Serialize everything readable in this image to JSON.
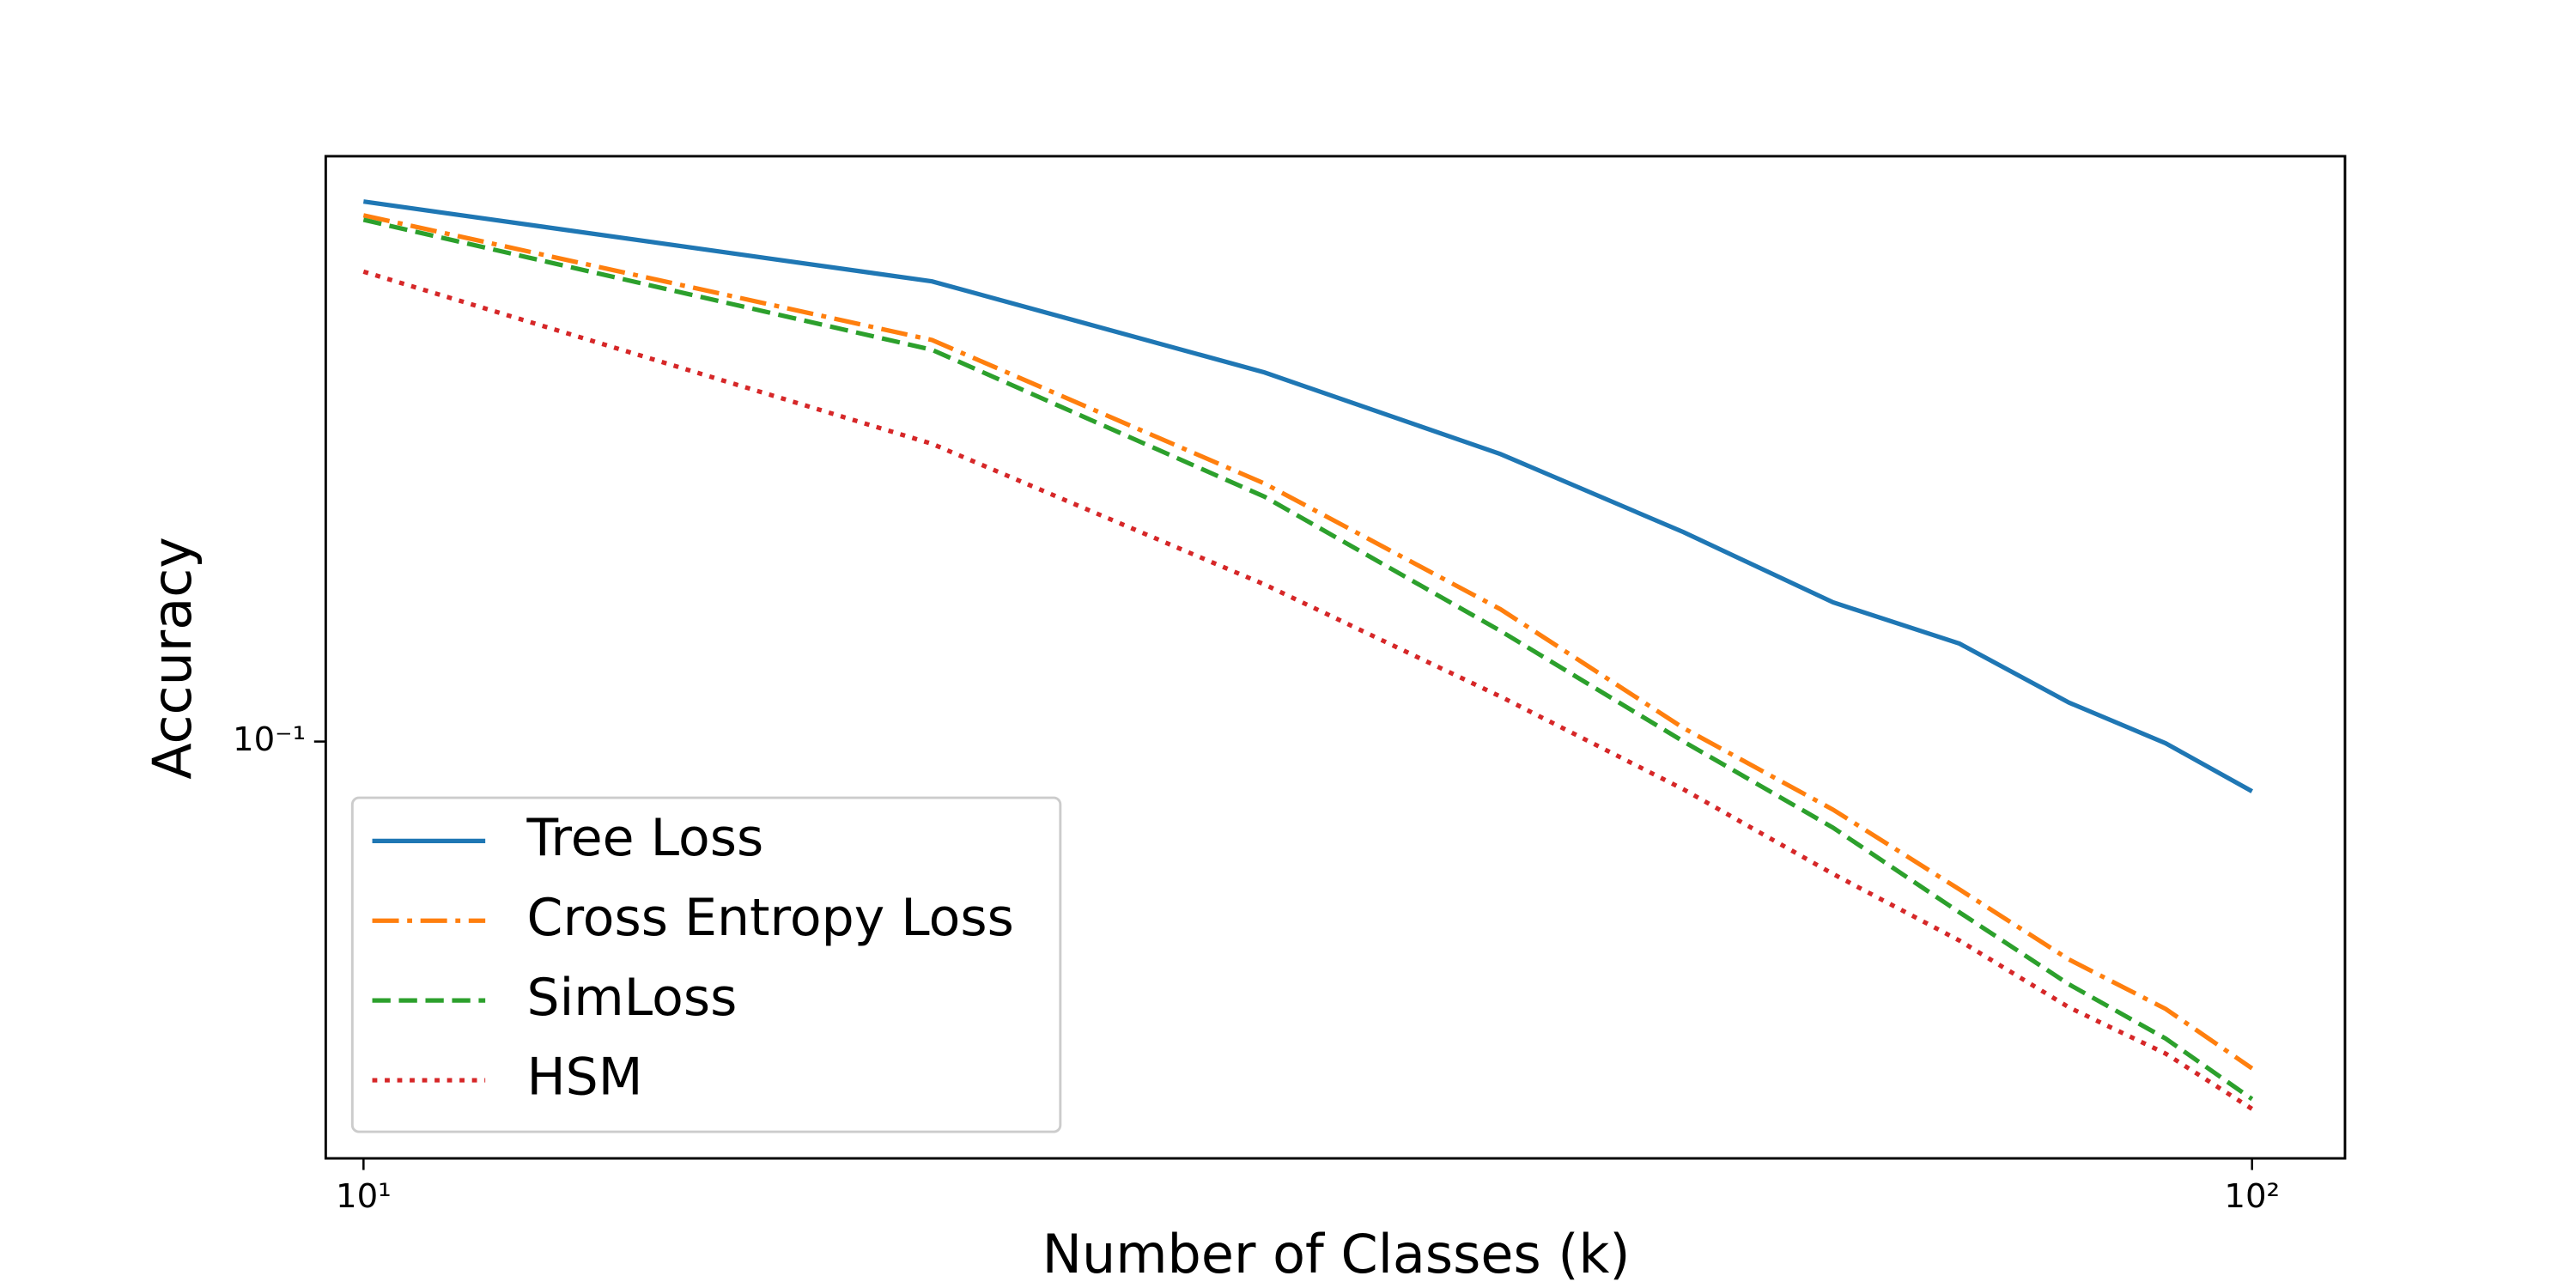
{
  "chart_data": {
    "type": "line",
    "xlabel": "Number of Classes (k)",
    "ylabel": "Accuracy",
    "x": [
      10,
      20,
      30,
      40,
      50,
      60,
      70,
      80,
      90,
      100
    ],
    "series": [
      {
        "name": "Tree Loss",
        "color": "#1f77b4",
        "linestyle": "solid",
        "values": [
          0.482,
          0.382,
          0.293,
          0.231,
          0.184,
          0.15,
          0.133,
          0.112,
          0.0995,
          0.0865
        ]
      },
      {
        "name": "Cross Entropy Loss",
        "color": "#ff7f0e",
        "linestyle": "dashdot",
        "values": [
          0.463,
          0.322,
          0.212,
          0.147,
          0.104,
          0.082,
          0.065,
          0.053,
          0.0459,
          0.0386
        ]
      },
      {
        "name": "SimLoss",
        "color": "#2ca02c",
        "linestyle": "dashed",
        "values": [
          0.457,
          0.313,
          0.204,
          0.138,
          0.1,
          0.0778,
          0.0608,
          0.0493,
          0.0421,
          0.0353
        ]
      },
      {
        "name": "HSM",
        "color": "#d62728",
        "linestyle": "dotted",
        "values": [
          0.393,
          0.238,
          0.158,
          0.114,
          0.087,
          0.068,
          0.056,
          0.0461,
          0.0403,
          0.0343
        ]
      }
    ],
    "xscale": "log",
    "yscale": "log",
    "xlim": [
      9.55,
      112
    ],
    "ylim": [
      0.0297,
      0.55
    ],
    "xticks": [
      {
        "value": 10,
        "label": "10¹"
      },
      {
        "value": 100,
        "label": "10²"
      }
    ],
    "yticks": [
      {
        "value": 0.1,
        "label": "10⁻¹"
      }
    ],
    "grid": false,
    "legend": "lower left"
  }
}
